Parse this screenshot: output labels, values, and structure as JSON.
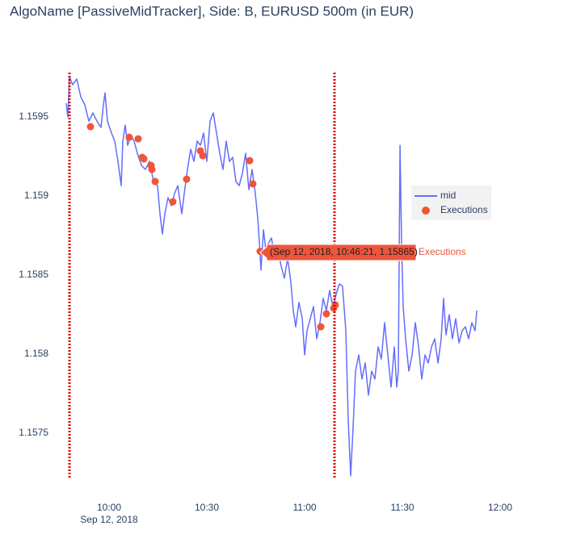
{
  "chart_data": {
    "type": "line",
    "title": "AlgoName [PassiveMidTracker], Side: B, EURUSD 500m (in EUR)",
    "x_date_label": "Sep 12, 2018",
    "xlim": [
      "2018-09-12 09:46:22",
      "2018-09-12 12:05:12"
    ],
    "ylim": [
      1.157214,
      1.159781
    ],
    "xticks": [
      {
        "value": "2018-09-12 10:00:00",
        "label": "10:00"
      },
      {
        "value": "2018-09-12 10:30:00",
        "label": "10:30"
      },
      {
        "value": "2018-09-12 11:00:00",
        "label": "11:00"
      },
      {
        "value": "2018-09-12 11:30:00",
        "label": "11:30"
      },
      {
        "value": "2018-09-12 12:00:00",
        "label": "12:00"
      }
    ],
    "yticks": [
      1.1575,
      1.158,
      1.1585,
      1.159,
      1.1595
    ],
    "shapes": [
      {
        "x": "2018-09-12 09:47:51",
        "color": "#dd0000"
      },
      {
        "x": "2018-09-12 11:09:10",
        "color": "#dd0000"
      }
    ],
    "hover_label": "(Sep 12, 2018, 10:46:21, 1.15865)",
    "series": [
      {
        "name": "mid",
        "mode": "lines",
        "color": "#636efa",
        "x": [
          "2018-09-12 09:46:52",
          "2018-09-12 09:47:22",
          "2018-09-12 09:47:51",
          "2018-09-12 09:48:50",
          "2018-09-12 09:50:05",
          "2018-09-12 09:51:19",
          "2018-09-12 09:52:34",
          "2018-09-12 09:53:48",
          "2018-09-12 09:55:02",
          "2018-09-12 09:56:17",
          "2018-09-12 09:57:31",
          "2018-09-12 09:58:16",
          "2018-09-12 09:58:46",
          "2018-09-12 09:59:30",
          "2018-09-12 10:00:45",
          "2018-09-12 10:01:44",
          "2018-09-12 10:02:44",
          "2018-09-12 10:03:43",
          "2018-09-12 10:04:13",
          "2018-09-12 10:04:58",
          "2018-09-12 10:05:42",
          "2018-09-12 10:06:42",
          "2018-09-12 10:07:41",
          "2018-09-12 10:08:41",
          "2018-09-12 10:09:55",
          "2018-09-12 10:11:10",
          "2018-09-12 10:12:24",
          "2018-09-12 10:13:38",
          "2018-09-12 10:14:53",
          "2018-09-12 10:15:37",
          "2018-09-12 10:16:22",
          "2018-09-12 10:17:07",
          "2018-09-12 10:18:06",
          "2018-09-12 10:19:05",
          "2018-09-12 10:20:05",
          "2018-09-12 10:21:04",
          "2018-09-12 10:22:19",
          "2018-09-12 10:23:04",
          "2018-09-12 10:24:03",
          "2018-09-12 10:25:02",
          "2018-09-12 10:26:02",
          "2018-09-12 10:27:01",
          "2018-09-12 10:28:01",
          "2018-09-12 10:29:01",
          "2018-09-12 10:30:00",
          "2018-09-12 10:30:59",
          "2018-09-12 10:31:59",
          "2018-09-12 10:32:59",
          "2018-09-12 10:33:58",
          "2018-09-12 10:34:58",
          "2018-09-12 10:35:57",
          "2018-09-12 10:36:56",
          "2018-09-12 10:37:56",
          "2018-09-12 10:38:56",
          "2018-09-12 10:39:55",
          "2018-09-12 10:40:55",
          "2018-09-12 10:41:54",
          "2018-09-12 10:42:53",
          "2018-09-12 10:43:53",
          "2018-09-12 10:44:53",
          "2018-09-12 10:45:37",
          "2018-09-12 10:46:07",
          "2018-09-12 10:46:37",
          "2018-09-12 10:47:22",
          "2018-09-12 10:48:06",
          "2018-09-12 10:49:05",
          "2018-09-12 10:49:50",
          "2018-09-12 10:50:50",
          "2018-09-12 10:51:49",
          "2018-09-12 10:52:49",
          "2018-09-12 10:53:48",
          "2018-09-12 10:54:47",
          "2018-09-12 10:55:47",
          "2018-09-12 10:56:32",
          "2018-09-12 10:57:16",
          "2018-09-12 10:58:16",
          "2018-09-12 10:59:16",
          "2018-09-12 11:00:00",
          "2018-09-12 11:00:45",
          "2018-09-12 11:01:44",
          "2018-09-12 11:02:44",
          "2018-09-12 11:03:43",
          "2018-09-12 11:04:43",
          "2018-09-12 11:05:42",
          "2018-09-12 11:06:41",
          "2018-09-12 11:07:41",
          "2018-09-12 11:08:41",
          "2018-09-12 11:09:40",
          "2018-09-12 11:10:40",
          "2018-09-12 11:11:39",
          "2018-09-12 11:12:38",
          "2018-09-12 11:13:23",
          "2018-09-12 11:14:08",
          "2018-09-12 11:14:53",
          "2018-09-12 11:15:37",
          "2018-09-12 11:16:37",
          "2018-09-12 11:17:36",
          "2018-09-12 11:18:36",
          "2018-09-12 11:19:35",
          "2018-09-12 11:20:35",
          "2018-09-12 11:21:34",
          "2018-09-12 11:22:34",
          "2018-09-12 11:23:33",
          "2018-09-12 11:24:33",
          "2018-09-12 11:25:32",
          "2018-09-12 11:26:32",
          "2018-09-12 11:27:31",
          "2018-09-12 11:28:16",
          "2018-09-12 11:28:46",
          "2018-09-12 11:29:16",
          "2018-09-12 11:29:45",
          "2018-09-12 11:30:15",
          "2018-09-12 11:30:59",
          "2018-09-12 11:31:59",
          "2018-09-12 11:32:59",
          "2018-09-12 11:33:58",
          "2018-09-12 11:34:58",
          "2018-09-12 11:35:57",
          "2018-09-12 11:36:56",
          "2018-09-12 11:37:56",
          "2018-09-12 11:38:56",
          "2018-09-12 11:39:55",
          "2018-09-12 11:40:55",
          "2018-09-12 11:41:54",
          "2018-09-12 11:42:38",
          "2018-09-12 11:43:23",
          "2018-09-12 11:44:23",
          "2018-09-12 11:45:22",
          "2018-09-12 11:46:22",
          "2018-09-12 11:47:22",
          "2018-09-12 11:48:21",
          "2018-09-12 11:49:20",
          "2018-09-12 11:50:20",
          "2018-09-12 11:51:19",
          "2018-09-12 11:52:19",
          "2018-09-12 11:52:49"
        ],
        "values": [
          1.159587,
          1.1595,
          1.159755,
          1.159704,
          1.15974,
          1.159628,
          1.159577,
          1.159474,
          1.159526,
          1.159474,
          1.159434,
          1.159577,
          1.159653,
          1.159474,
          1.159398,
          1.159347,
          1.159219,
          1.159066,
          1.159347,
          1.159449,
          1.159321,
          1.159383,
          1.159347,
          1.15927,
          1.159194,
          1.159168,
          1.159219,
          1.159092,
          1.159066,
          1.158888,
          1.15876,
          1.158888,
          1.15899,
          1.158939,
          1.159015,
          1.159066,
          1.158888,
          1.159015,
          1.159168,
          1.159296,
          1.159219,
          1.159347,
          1.159321,
          1.159398,
          1.159219,
          1.159474,
          1.159526,
          1.159398,
          1.15927,
          1.159168,
          1.159347,
          1.159219,
          1.159245,
          1.159092,
          1.159066,
          1.159143,
          1.15927,
          1.159041,
          1.159168,
          1.159015,
          1.158862,
          1.158709,
          1.158531,
          1.158786,
          1.158658,
          1.158709,
          1.158735,
          1.158607,
          1.158658,
          1.158556,
          1.15848,
          1.158607,
          1.158454,
          1.158276,
          1.158173,
          1.158327,
          1.158224,
          1.157995,
          1.158148,
          1.158224,
          1.158301,
          1.158097,
          1.158199,
          1.158352,
          1.158276,
          1.158403,
          1.158301,
          1.158378,
          1.158444,
          1.158429,
          1.158148,
          1.157587,
          1.15723,
          1.157536,
          1.157893,
          1.157995,
          1.157842,
          1.157944,
          1.15774,
          1.157893,
          1.157842,
          1.158046,
          1.157969,
          1.158199,
          1.157995,
          1.157791,
          1.158046,
          1.157791,
          1.157893,
          1.159321,
          1.158709,
          1.158301,
          1.158097,
          1.157893,
          1.157995,
          1.158199,
          1.158046,
          1.157842,
          1.157995,
          1.157944,
          1.158046,
          1.158097,
          1.157944,
          1.158097,
          1.158352,
          1.158122,
          1.15825,
          1.158097,
          1.158224,
          1.158071,
          1.158148,
          1.158173,
          1.158097,
          1.158199,
          1.158148,
          1.158276
        ]
      },
      {
        "name": "Executions",
        "mode": "markers",
        "color": "#ef553b",
        "x": [
          "2018-09-12 09:54:18",
          "2018-09-12 10:06:12",
          "2018-09-12 10:08:56",
          "2018-09-12 10:10:10",
          "2018-09-12 10:10:40",
          "2018-09-12 10:12:53",
          "2018-09-12 10:13:08",
          "2018-09-12 10:14:08",
          "2018-09-12 10:19:35",
          "2018-09-12 10:23:48",
          "2018-09-12 10:28:01",
          "2018-09-12 10:28:46",
          "2018-09-12 10:43:08",
          "2018-09-12 10:44:08",
          "2018-09-12 10:46:21",
          "2018-09-12 11:04:58",
          "2018-09-12 11:06:41",
          "2018-09-12 11:08:56",
          "2018-09-12 11:09:25"
        ],
        "values": [
          1.159439,
          1.159372,
          1.159362,
          1.159245,
          1.159235,
          1.159194,
          1.159168,
          1.159092,
          1.158964,
          1.159107,
          1.159286,
          1.159255,
          1.159224,
          1.159077,
          1.15865,
          1.158173,
          1.158255,
          1.158291,
          1.158311
        ]
      }
    ]
  }
}
